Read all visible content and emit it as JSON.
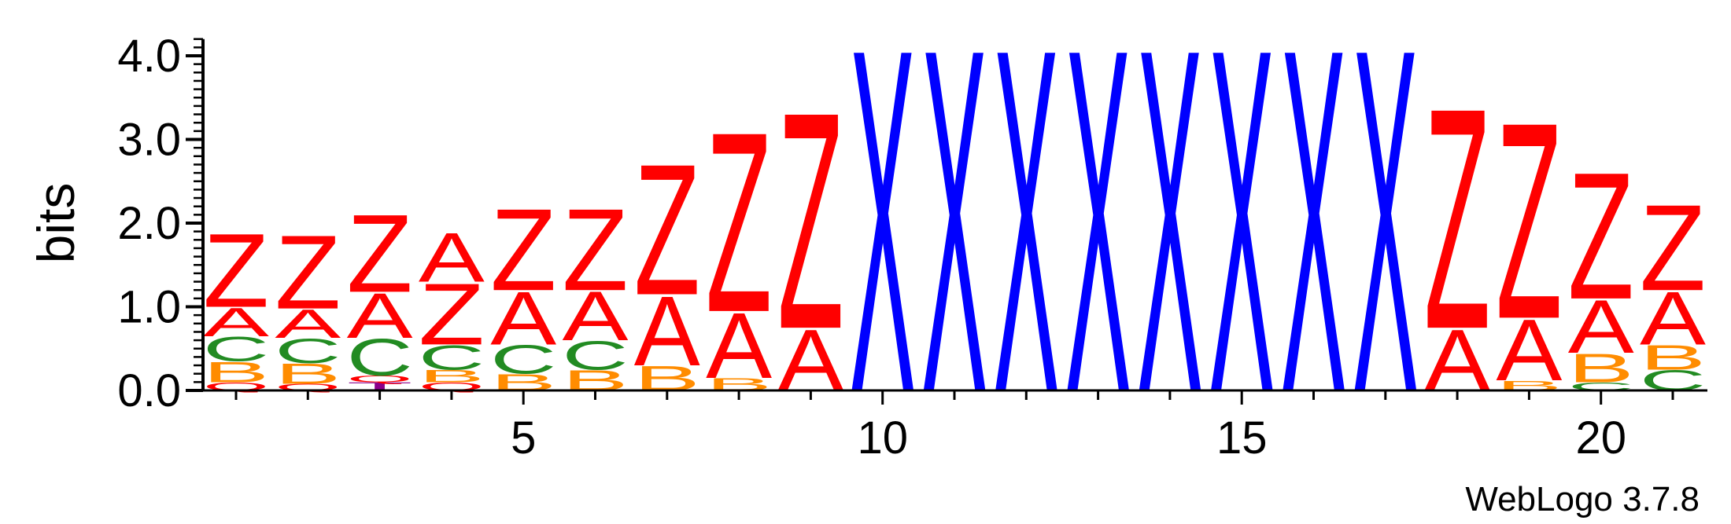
{
  "chart_data": {
    "type": "sequence-logo",
    "ylabel": "bits",
    "ylim": [
      0,
      4.2
    ],
    "y_ticks": [
      "0.0",
      "1.0",
      "2.0",
      "3.0",
      "4.0"
    ],
    "x_tick_labels": [
      "5",
      "10",
      "15",
      "20"
    ],
    "x_tick_positions": [
      5,
      10,
      15,
      20
    ],
    "footer": "WebLogo 3.7.8",
    "colors": {
      "Z": "#ff0000",
      "A": "#ff0000",
      "C": "#228b22",
      "B": "#ff8c00",
      "X": "#0000ff",
      "Q": "#ff0000",
      "T": "#8b008b"
    },
    "positions": [
      {
        "pos": 1,
        "stack": [
          {
            "l": "Q",
            "h": 0.1
          },
          {
            "l": "B",
            "h": 0.25
          },
          {
            "l": "C",
            "h": 0.3
          },
          {
            "l": "A",
            "h": 0.35
          },
          {
            "l": "Z",
            "h": 0.9
          }
        ]
      },
      {
        "pos": 2,
        "stack": [
          {
            "l": "Q",
            "h": 0.08
          },
          {
            "l": "B",
            "h": 0.25
          },
          {
            "l": "C",
            "h": 0.3
          },
          {
            "l": "A",
            "h": 0.35
          },
          {
            "l": "Z",
            "h": 0.9
          }
        ]
      },
      {
        "pos": 3,
        "stack": [
          {
            "l": "T",
            "h": 0.1
          },
          {
            "l": "Q",
            "h": 0.08
          },
          {
            "l": "C",
            "h": 0.45
          },
          {
            "l": "A",
            "h": 0.55
          },
          {
            "l": "Z",
            "h": 0.95
          }
        ]
      },
      {
        "pos": 4,
        "stack": [
          {
            "l": "Q",
            "h": 0.1
          },
          {
            "l": "B",
            "h": 0.15
          },
          {
            "l": "C",
            "h": 0.3
          },
          {
            "l": "Z",
            "h": 0.75
          },
          {
            "l": "A",
            "h": 0.6
          }
        ]
      },
      {
        "pos": 5,
        "stack": [
          {
            "l": "B",
            "h": 0.2
          },
          {
            "l": "C",
            "h": 0.35
          },
          {
            "l": "A",
            "h": 0.65
          },
          {
            "l": "Z",
            "h": 1.0
          }
        ]
      },
      {
        "pos": 6,
        "stack": [
          {
            "l": "B",
            "h": 0.25
          },
          {
            "l": "C",
            "h": 0.35
          },
          {
            "l": "A",
            "h": 0.6
          },
          {
            "l": "Z",
            "h": 1.0
          }
        ]
      },
      {
        "pos": 7,
        "stack": [
          {
            "l": "B",
            "h": 0.3
          },
          {
            "l": "A",
            "h": 0.85
          },
          {
            "l": "Z",
            "h": 1.6
          }
        ]
      },
      {
        "pos": 8,
        "stack": [
          {
            "l": "B",
            "h": 0.15
          },
          {
            "l": "A",
            "h": 0.8
          },
          {
            "l": "Z",
            "h": 2.2
          }
        ]
      },
      {
        "pos": 9,
        "stack": [
          {
            "l": "A",
            "h": 0.75
          },
          {
            "l": "Z",
            "h": 2.65
          }
        ]
      },
      {
        "pos": 10,
        "stack": [
          {
            "l": "X",
            "h": 4.2
          }
        ]
      },
      {
        "pos": 11,
        "stack": [
          {
            "l": "X",
            "h": 4.2
          }
        ]
      },
      {
        "pos": 12,
        "stack": [
          {
            "l": "X",
            "h": 4.2
          }
        ]
      },
      {
        "pos": 13,
        "stack": [
          {
            "l": "X",
            "h": 4.2
          }
        ]
      },
      {
        "pos": 14,
        "stack": [
          {
            "l": "X",
            "h": 4.2
          }
        ]
      },
      {
        "pos": 15,
        "stack": [
          {
            "l": "X",
            "h": 4.2
          }
        ]
      },
      {
        "pos": 16,
        "stack": [
          {
            "l": "X",
            "h": 4.2
          }
        ]
      },
      {
        "pos": 17,
        "stack": [
          {
            "l": "X",
            "h": 4.2
          }
        ]
      },
      {
        "pos": 18,
        "stack": [
          {
            "l": "A",
            "h": 0.75
          },
          {
            "l": "Z",
            "h": 2.7
          }
        ]
      },
      {
        "pos": 19,
        "stack": [
          {
            "l": "B",
            "h": 0.12
          },
          {
            "l": "A",
            "h": 0.75
          },
          {
            "l": "Z",
            "h": 2.4
          }
        ]
      },
      {
        "pos": 20,
        "stack": [
          {
            "l": "C",
            "h": 0.1
          },
          {
            "l": "B",
            "h": 0.35
          },
          {
            "l": "A",
            "h": 0.65
          },
          {
            "l": "Z",
            "h": 1.55
          }
        ]
      },
      {
        "pos": 21,
        "stack": [
          {
            "l": "C",
            "h": 0.25
          },
          {
            "l": "B",
            "h": 0.3
          },
          {
            "l": "A",
            "h": 0.65
          },
          {
            "l": "Z",
            "h": 1.05
          }
        ]
      }
    ]
  }
}
